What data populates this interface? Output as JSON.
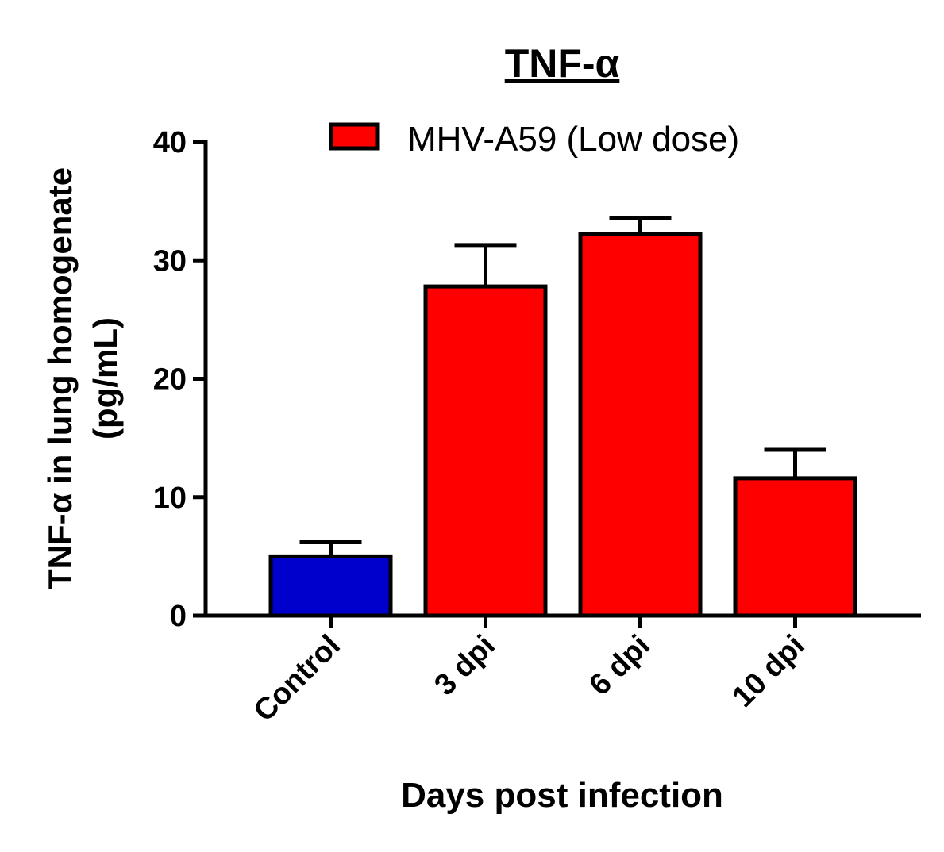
{
  "chart_data": {
    "type": "bar",
    "title": "TNF-α",
    "xlabel": "Days post infection",
    "ylabel_line1": "TNF-α in lung homogenate",
    "ylabel_line2": "(pg/mL)",
    "categories": [
      "Control",
      "3 dpi",
      "6 dpi",
      "10 dpi"
    ],
    "values": [
      5.0,
      27.8,
      32.2,
      11.6
    ],
    "errors": [
      1.2,
      3.5,
      1.4,
      2.4
    ],
    "bar_colors": [
      "#0000cc",
      "#ff0000",
      "#ff0000",
      "#ff0000"
    ],
    "ylim": [
      0,
      40
    ],
    "yticks": [
      0,
      10,
      20,
      30,
      40
    ],
    "legend": {
      "label": "MHV-A59 (Low dose)",
      "color": "#ff0000",
      "position": "top"
    },
    "grid": false
  }
}
